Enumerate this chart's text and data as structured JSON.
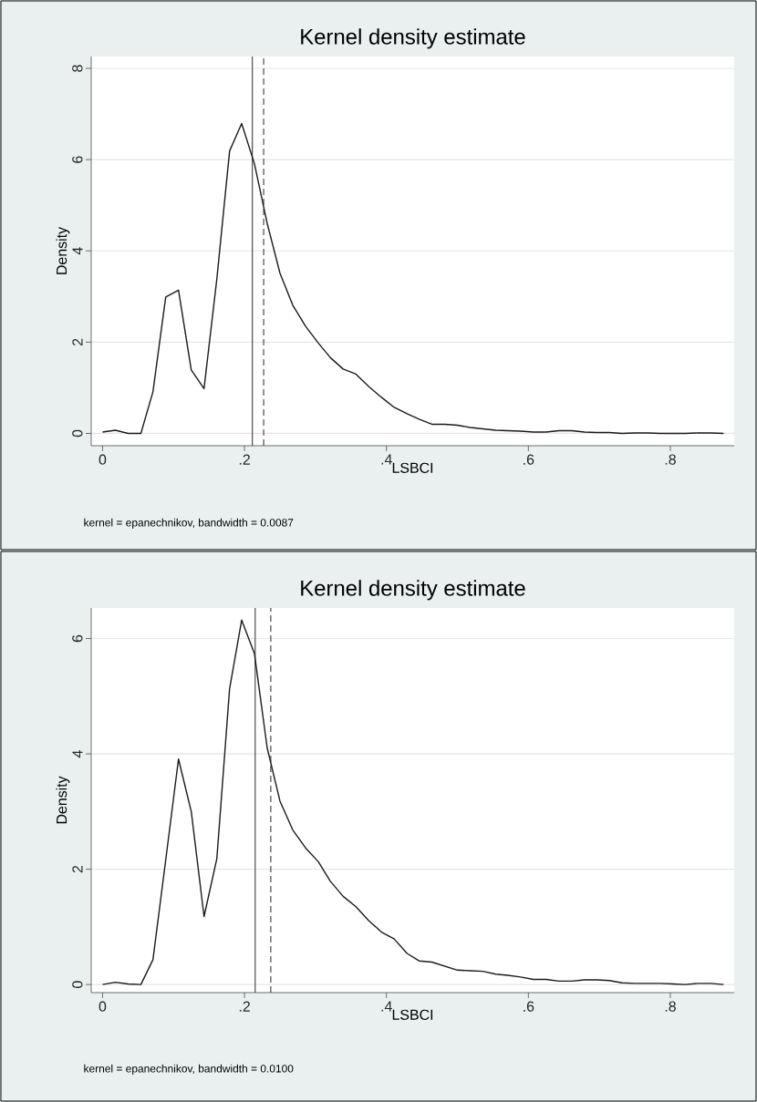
{
  "chart_data": [
    {
      "type": "line",
      "title": "Kernel density estimate",
      "xlabel": "LSBCI",
      "ylabel": "Density",
      "annotations": [
        "kernel = epanechnikov, bandwidth = 0.0087"
      ],
      "x": [
        0,
        0.018,
        0.036,
        0.054,
        0.071,
        0.089,
        0.107,
        0.125,
        0.143,
        0.161,
        0.179,
        0.196,
        0.214,
        0.232,
        0.25,
        0.268,
        0.286,
        0.304,
        0.321,
        0.339,
        0.357,
        0.375,
        0.393,
        0.411,
        0.429,
        0.446,
        0.464,
        0.482,
        0.5,
        0.518,
        0.536,
        0.554,
        0.571,
        0.589,
        0.607,
        0.625,
        0.643,
        0.661,
        0.679,
        0.696,
        0.714,
        0.732,
        0.75,
        0.768,
        0.786,
        0.804,
        0.821,
        0.839,
        0.857,
        0.875
      ],
      "series": [
        {
          "color": "#1a1a1a",
          "values": [
            0.03,
            0.07,
            0,
            0,
            0.91,
            2.99,
            3.14,
            1.39,
            0.98,
            3.38,
            6.19,
            6.79,
            5.91,
            4.6,
            3.51,
            2.81,
            2.35,
            1.98,
            1.66,
            1.41,
            1.3,
            1.03,
            0.79,
            0.57,
            0.43,
            0.31,
            0.2,
            0.2,
            0.18,
            0.13,
            0.1,
            0.07,
            0.06,
            0.05,
            0.03,
            0.03,
            0.06,
            0.06,
            0.03,
            0.02,
            0.02,
            0,
            0.01,
            0.01,
            0,
            0,
            0,
            0.01,
            0.01,
            0
          ]
        }
      ],
      "xlim": [
        -0.016,
        0.89
      ],
      "ylim": [
        -0.27,
        8.26
      ],
      "xticks": [
        0,
        {
          "value": 0.2,
          "label": ".2"
        },
        {
          "value": 0.4,
          "label": ".4"
        },
        {
          "value": 0.6,
          "label": ".6"
        },
        {
          "value": 0.8,
          "label": ".8"
        }
      ],
      "yticks": [
        0,
        2,
        4,
        6,
        8
      ],
      "grid": "y",
      "ref_lines": [
        {
          "axis": "x",
          "value": 0.211,
          "color": "#4d4d4d",
          "line_style": "solid"
        },
        {
          "axis": "x",
          "value": 0.227,
          "color": "#4d4d4d",
          "line_style": "dashed"
        }
      ]
    },
    {
      "type": "line",
      "title": "Kernel density estimate",
      "xlabel": "LSBCI",
      "ylabel": "Density",
      "annotations": [
        "kernel = epanechnikov, bandwidth = 0.0100"
      ],
      "x": [
        0,
        0.018,
        0.036,
        0.054,
        0.071,
        0.089,
        0.107,
        0.125,
        0.143,
        0.161,
        0.179,
        0.196,
        0.214,
        0.232,
        0.25,
        0.268,
        0.286,
        0.304,
        0.321,
        0.339,
        0.357,
        0.375,
        0.393,
        0.411,
        0.429,
        0.446,
        0.464,
        0.482,
        0.5,
        0.518,
        0.536,
        0.554,
        0.571,
        0.589,
        0.607,
        0.625,
        0.643,
        0.661,
        0.679,
        0.696,
        0.714,
        0.732,
        0.75,
        0.768,
        0.786,
        0.804,
        0.821,
        0.839,
        0.857,
        0.875
      ],
      "series": [
        {
          "color": "#1a1a1a",
          "values": [
            0,
            0.04,
            0.01,
            0,
            0.43,
            2.16,
            3.91,
            3.0,
            1.18,
            2.18,
            5.13,
            6.32,
            5.74,
            4.1,
            3.18,
            2.68,
            2.37,
            2.13,
            1.79,
            1.53,
            1.35,
            1.11,
            0.91,
            0.79,
            0.54,
            0.41,
            0.39,
            0.32,
            0.25,
            0.24,
            0.23,
            0.18,
            0.16,
            0.13,
            0.09,
            0.09,
            0.06,
            0.06,
            0.08,
            0.08,
            0.07,
            0.03,
            0.02,
            0.02,
            0.02,
            0.01,
            0,
            0.02,
            0.02,
            0
          ]
        }
      ],
      "xlim": [
        -0.016,
        0.89
      ],
      "ylim": [
        -0.14,
        6.53
      ],
      "xticks": [
        0,
        {
          "value": 0.2,
          "label": ".2"
        },
        {
          "value": 0.4,
          "label": ".4"
        },
        {
          "value": 0.6,
          "label": ".6"
        },
        {
          "value": 0.8,
          "label": ".8"
        }
      ],
      "yticks": [
        0,
        2,
        4,
        6
      ],
      "grid": "y",
      "ref_lines": [
        {
          "axis": "x",
          "value": 0.215,
          "color": "#4d4d4d",
          "line_style": "solid"
        },
        {
          "axis": "x",
          "value": 0.237,
          "color": "#4d4d4d",
          "line_style": "dashed"
        }
      ]
    }
  ]
}
